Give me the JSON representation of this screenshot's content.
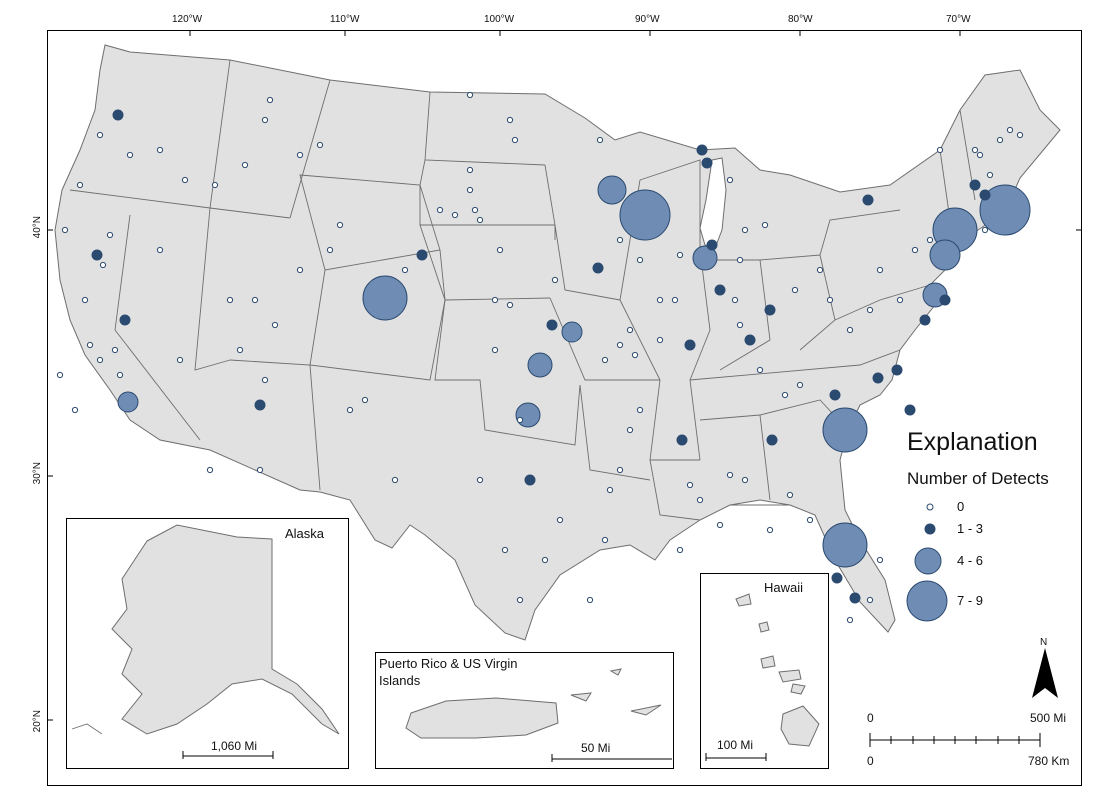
{
  "map": {
    "graticule": {
      "longitudes": [
        "120°W",
        "110°W",
        "100°W",
        "90°W",
        "80°W",
        "70°W"
      ],
      "latitudes": [
        "40°N",
        "30°N",
        "20°N"
      ]
    },
    "colors": {
      "land": "#e1e1e1",
      "border": "#6e6e6e",
      "detect_fill": "#2b4a70",
      "large_fill": "#6f8db4",
      "zero_fill": "#ffffff"
    }
  },
  "insets": {
    "alaska": {
      "title": "Alaska",
      "scale_label": "1,060 Mi"
    },
    "puerto_rico": {
      "title_line1": "Puerto Rico & US Virgin",
      "title_line2": "Islands",
      "scale_label": "50 Mi"
    },
    "hawaii": {
      "title": "Hawaii",
      "scale_label": "100 Mi"
    }
  },
  "legend": {
    "title": "Explanation",
    "subtitle": "Number of Detects",
    "classes": [
      {
        "label": "0",
        "size": "tiny",
        "color": "#ffffff"
      },
      {
        "label": "1 - 3",
        "size": "small",
        "color": "#2b4a70"
      },
      {
        "label": "4 - 6",
        "size": "medium",
        "color": "#6f8db4"
      },
      {
        "label": "7 - 9",
        "size": "large",
        "color": "#6f8db4"
      }
    ]
  },
  "scale_bar": {
    "top_left": "0",
    "top_right": "500 Mi",
    "bottom_left": "0",
    "bottom_right": "780 Km"
  },
  "north_arrow": {
    "label": "N"
  }
}
